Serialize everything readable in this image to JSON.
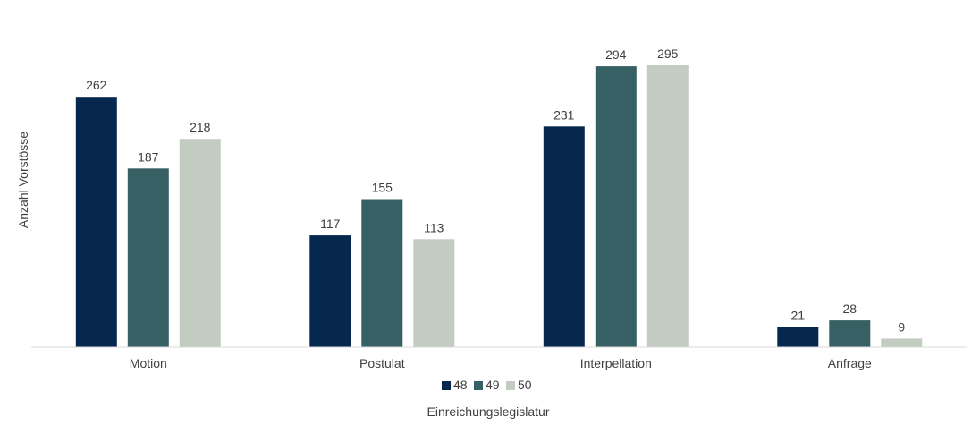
{
  "chart_data": {
    "type": "bar",
    "title": "",
    "xlabel": "Einreichungslegislatur",
    "ylabel": "Anzahl Vorstösse",
    "categories": [
      "Motion",
      "Postulat",
      "Interpellation",
      "Anfrage"
    ],
    "series": [
      {
        "name": "48",
        "values": [
          262,
          117,
          231,
          21
        ],
        "color": "#06284f"
      },
      {
        "name": "49",
        "values": [
          187,
          155,
          294,
          28
        ],
        "color": "#376064"
      },
      {
        "name": "50",
        "values": [
          218,
          113,
          295,
          9
        ],
        "color": "#c3ccc1"
      }
    ],
    "ylim": [
      0,
      295
    ],
    "grid": false,
    "legend_position": "bottom"
  }
}
